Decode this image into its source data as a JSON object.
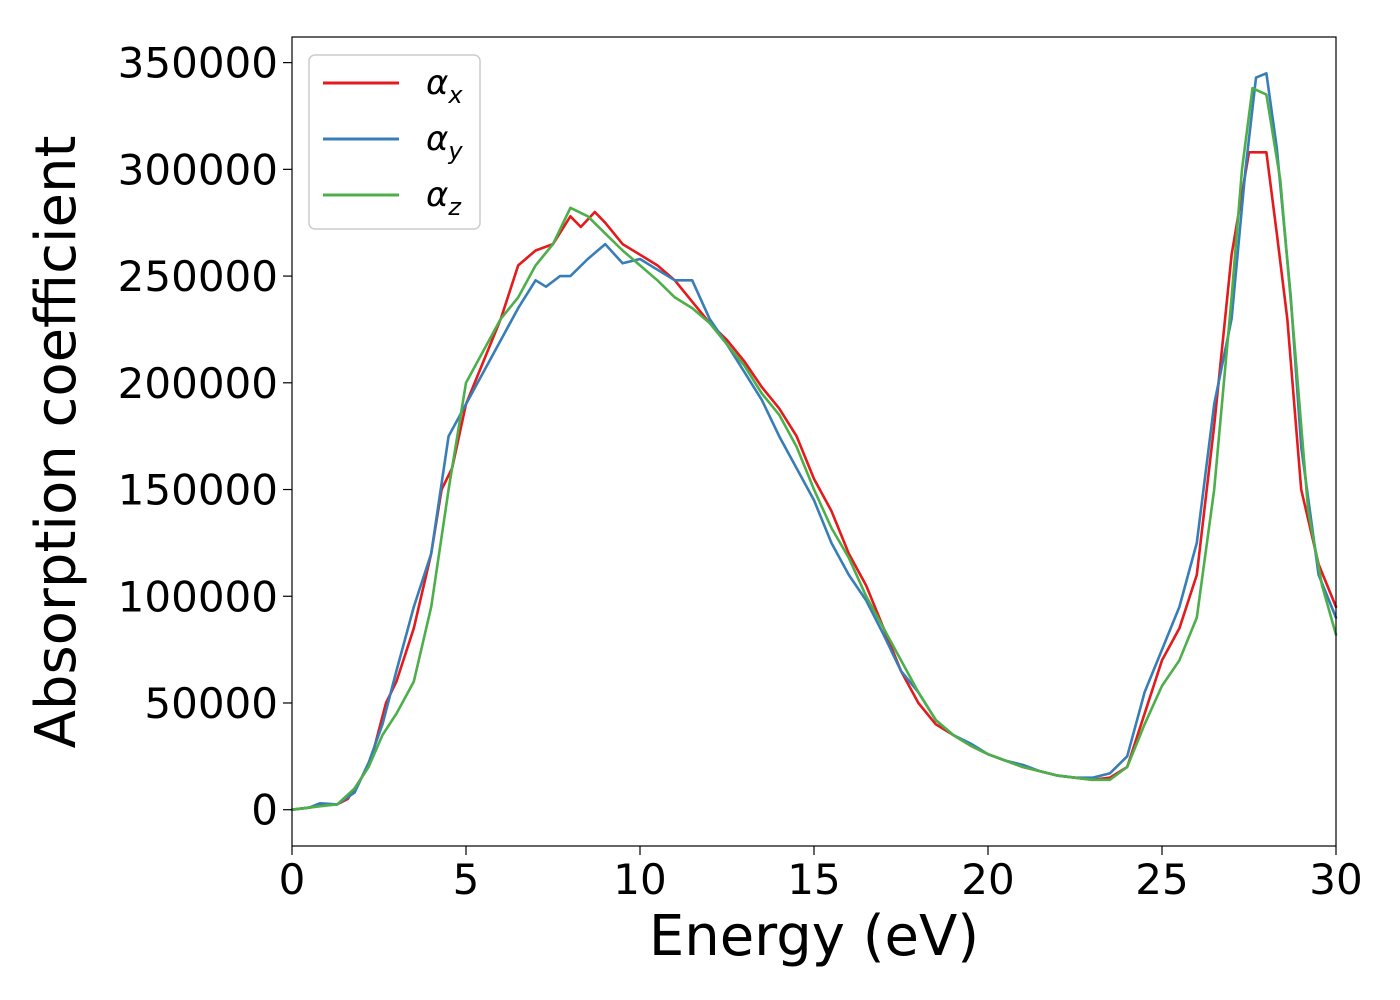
{
  "chart_data": {
    "type": "line",
    "title": "",
    "xlabel": "Energy (eV)",
    "ylabel": "Absorption coefficient",
    "xlim": [
      0,
      30
    ],
    "ylim": [
      -17000,
      362000
    ],
    "xticks": [
      0,
      5,
      10,
      15,
      20,
      25,
      30
    ],
    "xtick_labels": [
      "0",
      "5",
      "10",
      "15",
      "20",
      "25",
      "30"
    ],
    "yticks": [
      0,
      50000,
      100000,
      150000,
      200000,
      250000,
      300000,
      350000
    ],
    "ytick_labels": [
      "0",
      "50000",
      "100000",
      "150000",
      "200000",
      "250000",
      "300000",
      "350000"
    ],
    "grid": false,
    "legend_position": "top-left",
    "series": [
      {
        "name": "αx",
        "symbol": "α",
        "subscript": "x",
        "color": "#e41a1c",
        "points": [
          [
            0,
            0
          ],
          [
            0.5,
            1000
          ],
          [
            1,
            2500
          ],
          [
            1.3,
            2500
          ],
          [
            1.6,
            5000
          ],
          [
            2,
            15000
          ],
          [
            2.3,
            25000
          ],
          [
            2.7,
            50000
          ],
          [
            3,
            60000
          ],
          [
            3.5,
            85000
          ],
          [
            4,
            120000
          ],
          [
            4.3,
            150000
          ],
          [
            4.6,
            160000
          ],
          [
            5,
            190000
          ],
          [
            5.5,
            210000
          ],
          [
            6,
            230000
          ],
          [
            6.5,
            255000
          ],
          [
            7,
            262000
          ],
          [
            7.5,
            265000
          ],
          [
            8,
            278000
          ],
          [
            8.3,
            273000
          ],
          [
            8.7,
            280000
          ],
          [
            9,
            275000
          ],
          [
            9.5,
            265000
          ],
          [
            10,
            260000
          ],
          [
            10.5,
            255000
          ],
          [
            11,
            248000
          ],
          [
            11.5,
            238000
          ],
          [
            12,
            228000
          ],
          [
            12.5,
            220000
          ],
          [
            13,
            210000
          ],
          [
            13.5,
            198000
          ],
          [
            14,
            188000
          ],
          [
            14.5,
            175000
          ],
          [
            15,
            155000
          ],
          [
            15.5,
            140000
          ],
          [
            16,
            120000
          ],
          [
            16.5,
            105000
          ],
          [
            17,
            85000
          ],
          [
            17.5,
            65000
          ],
          [
            18,
            50000
          ],
          [
            18.5,
            40000
          ],
          [
            19,
            35000
          ],
          [
            19.5,
            30000
          ],
          [
            20,
            26000
          ],
          [
            20.5,
            23000
          ],
          [
            21,
            20000
          ],
          [
            21.5,
            18000
          ],
          [
            22,
            16000
          ],
          [
            22.5,
            15000
          ],
          [
            23,
            14000
          ],
          [
            23.5,
            15000
          ],
          [
            24,
            20000
          ],
          [
            24.5,
            45000
          ],
          [
            25,
            70000
          ],
          [
            25.5,
            85000
          ],
          [
            26,
            110000
          ],
          [
            26.5,
            180000
          ],
          [
            27,
            260000
          ],
          [
            27.5,
            308000
          ],
          [
            28,
            308000
          ],
          [
            28.3,
            270000
          ],
          [
            28.6,
            230000
          ],
          [
            29,
            150000
          ],
          [
            29.5,
            115000
          ],
          [
            30,
            95000
          ]
        ]
      },
      {
        "name": "αy",
        "symbol": "α",
        "subscript": "y",
        "color": "#377eb8",
        "points": [
          [
            0,
            0
          ],
          [
            0.5,
            1000
          ],
          [
            0.8,
            3000
          ],
          [
            1.3,
            2500
          ],
          [
            1.8,
            8000
          ],
          [
            2.2,
            22000
          ],
          [
            2.6,
            40000
          ],
          [
            3,
            65000
          ],
          [
            3.5,
            95000
          ],
          [
            4,
            120000
          ],
          [
            4.5,
            175000
          ],
          [
            5,
            190000
          ],
          [
            5.5,
            205000
          ],
          [
            6,
            220000
          ],
          [
            6.5,
            235000
          ],
          [
            7,
            248000
          ],
          [
            7.3,
            245000
          ],
          [
            7.7,
            250000
          ],
          [
            8,
            250000
          ],
          [
            8.5,
            258000
          ],
          [
            9,
            265000
          ],
          [
            9.5,
            256000
          ],
          [
            10,
            258000
          ],
          [
            10.5,
            253000
          ],
          [
            11,
            248000
          ],
          [
            11.5,
            248000
          ],
          [
            12,
            230000
          ],
          [
            12.5,
            218000
          ],
          [
            13,
            205000
          ],
          [
            13.5,
            192000
          ],
          [
            14,
            175000
          ],
          [
            14.5,
            160000
          ],
          [
            15,
            145000
          ],
          [
            15.5,
            125000
          ],
          [
            16,
            110000
          ],
          [
            16.5,
            98000
          ],
          [
            17,
            82000
          ],
          [
            17.5,
            65000
          ],
          [
            18,
            55000
          ],
          [
            18.5,
            42000
          ],
          [
            19,
            35000
          ],
          [
            19.5,
            31000
          ],
          [
            20,
            26000
          ],
          [
            20.5,
            23000
          ],
          [
            21,
            21000
          ],
          [
            21.5,
            18000
          ],
          [
            22,
            16000
          ],
          [
            22.5,
            15000
          ],
          [
            23,
            15000
          ],
          [
            23.5,
            17000
          ],
          [
            24,
            25000
          ],
          [
            24.5,
            55000
          ],
          [
            25,
            75000
          ],
          [
            25.5,
            95000
          ],
          [
            26,
            125000
          ],
          [
            26.5,
            190000
          ],
          [
            27,
            230000
          ],
          [
            27.4,
            300000
          ],
          [
            27.7,
            343000
          ],
          [
            28,
            345000
          ],
          [
            28.3,
            310000
          ],
          [
            28.7,
            240000
          ],
          [
            29,
            170000
          ],
          [
            29.5,
            110000
          ],
          [
            30,
            90000
          ]
        ]
      },
      {
        "name": "αz",
        "symbol": "α",
        "subscript": "z",
        "color": "#4daf4a",
        "points": [
          [
            0,
            0
          ],
          [
            0.5,
            1000
          ],
          [
            1,
            2000
          ],
          [
            1.3,
            2500
          ],
          [
            1.8,
            10000
          ],
          [
            2.2,
            20000
          ],
          [
            2.6,
            35000
          ],
          [
            3,
            45000
          ],
          [
            3.5,
            60000
          ],
          [
            4,
            95000
          ],
          [
            4.5,
            150000
          ],
          [
            5,
            200000
          ],
          [
            5.5,
            215000
          ],
          [
            6,
            230000
          ],
          [
            6.5,
            240000
          ],
          [
            7,
            255000
          ],
          [
            7.5,
            265000
          ],
          [
            8,
            282000
          ],
          [
            8.5,
            278000
          ],
          [
            9,
            270000
          ],
          [
            9.5,
            262000
          ],
          [
            10,
            255000
          ],
          [
            10.5,
            248000
          ],
          [
            11,
            240000
          ],
          [
            11.5,
            235000
          ],
          [
            12,
            228000
          ],
          [
            12.5,
            218000
          ],
          [
            13,
            208000
          ],
          [
            13.5,
            195000
          ],
          [
            14,
            185000
          ],
          [
            14.5,
            170000
          ],
          [
            15,
            150000
          ],
          [
            15.5,
            132000
          ],
          [
            16,
            118000
          ],
          [
            16.5,
            100000
          ],
          [
            17,
            85000
          ],
          [
            17.5,
            70000
          ],
          [
            18,
            55000
          ],
          [
            18.5,
            42000
          ],
          [
            19,
            35000
          ],
          [
            19.5,
            30000
          ],
          [
            20,
            26000
          ],
          [
            20.5,
            23000
          ],
          [
            21,
            20000
          ],
          [
            21.5,
            18000
          ],
          [
            22,
            16000
          ],
          [
            22.5,
            15000
          ],
          [
            23,
            14000
          ],
          [
            23.5,
            14000
          ],
          [
            24,
            20000
          ],
          [
            24.5,
            40000
          ],
          [
            25,
            58000
          ],
          [
            25.5,
            70000
          ],
          [
            26,
            90000
          ],
          [
            26.5,
            150000
          ],
          [
            27,
            240000
          ],
          [
            27.3,
            300000
          ],
          [
            27.6,
            338000
          ],
          [
            28,
            335000
          ],
          [
            28.4,
            295000
          ],
          [
            28.8,
            220000
          ],
          [
            29.2,
            140000
          ],
          [
            29.6,
            105000
          ],
          [
            30,
            82000
          ]
        ]
      }
    ]
  }
}
